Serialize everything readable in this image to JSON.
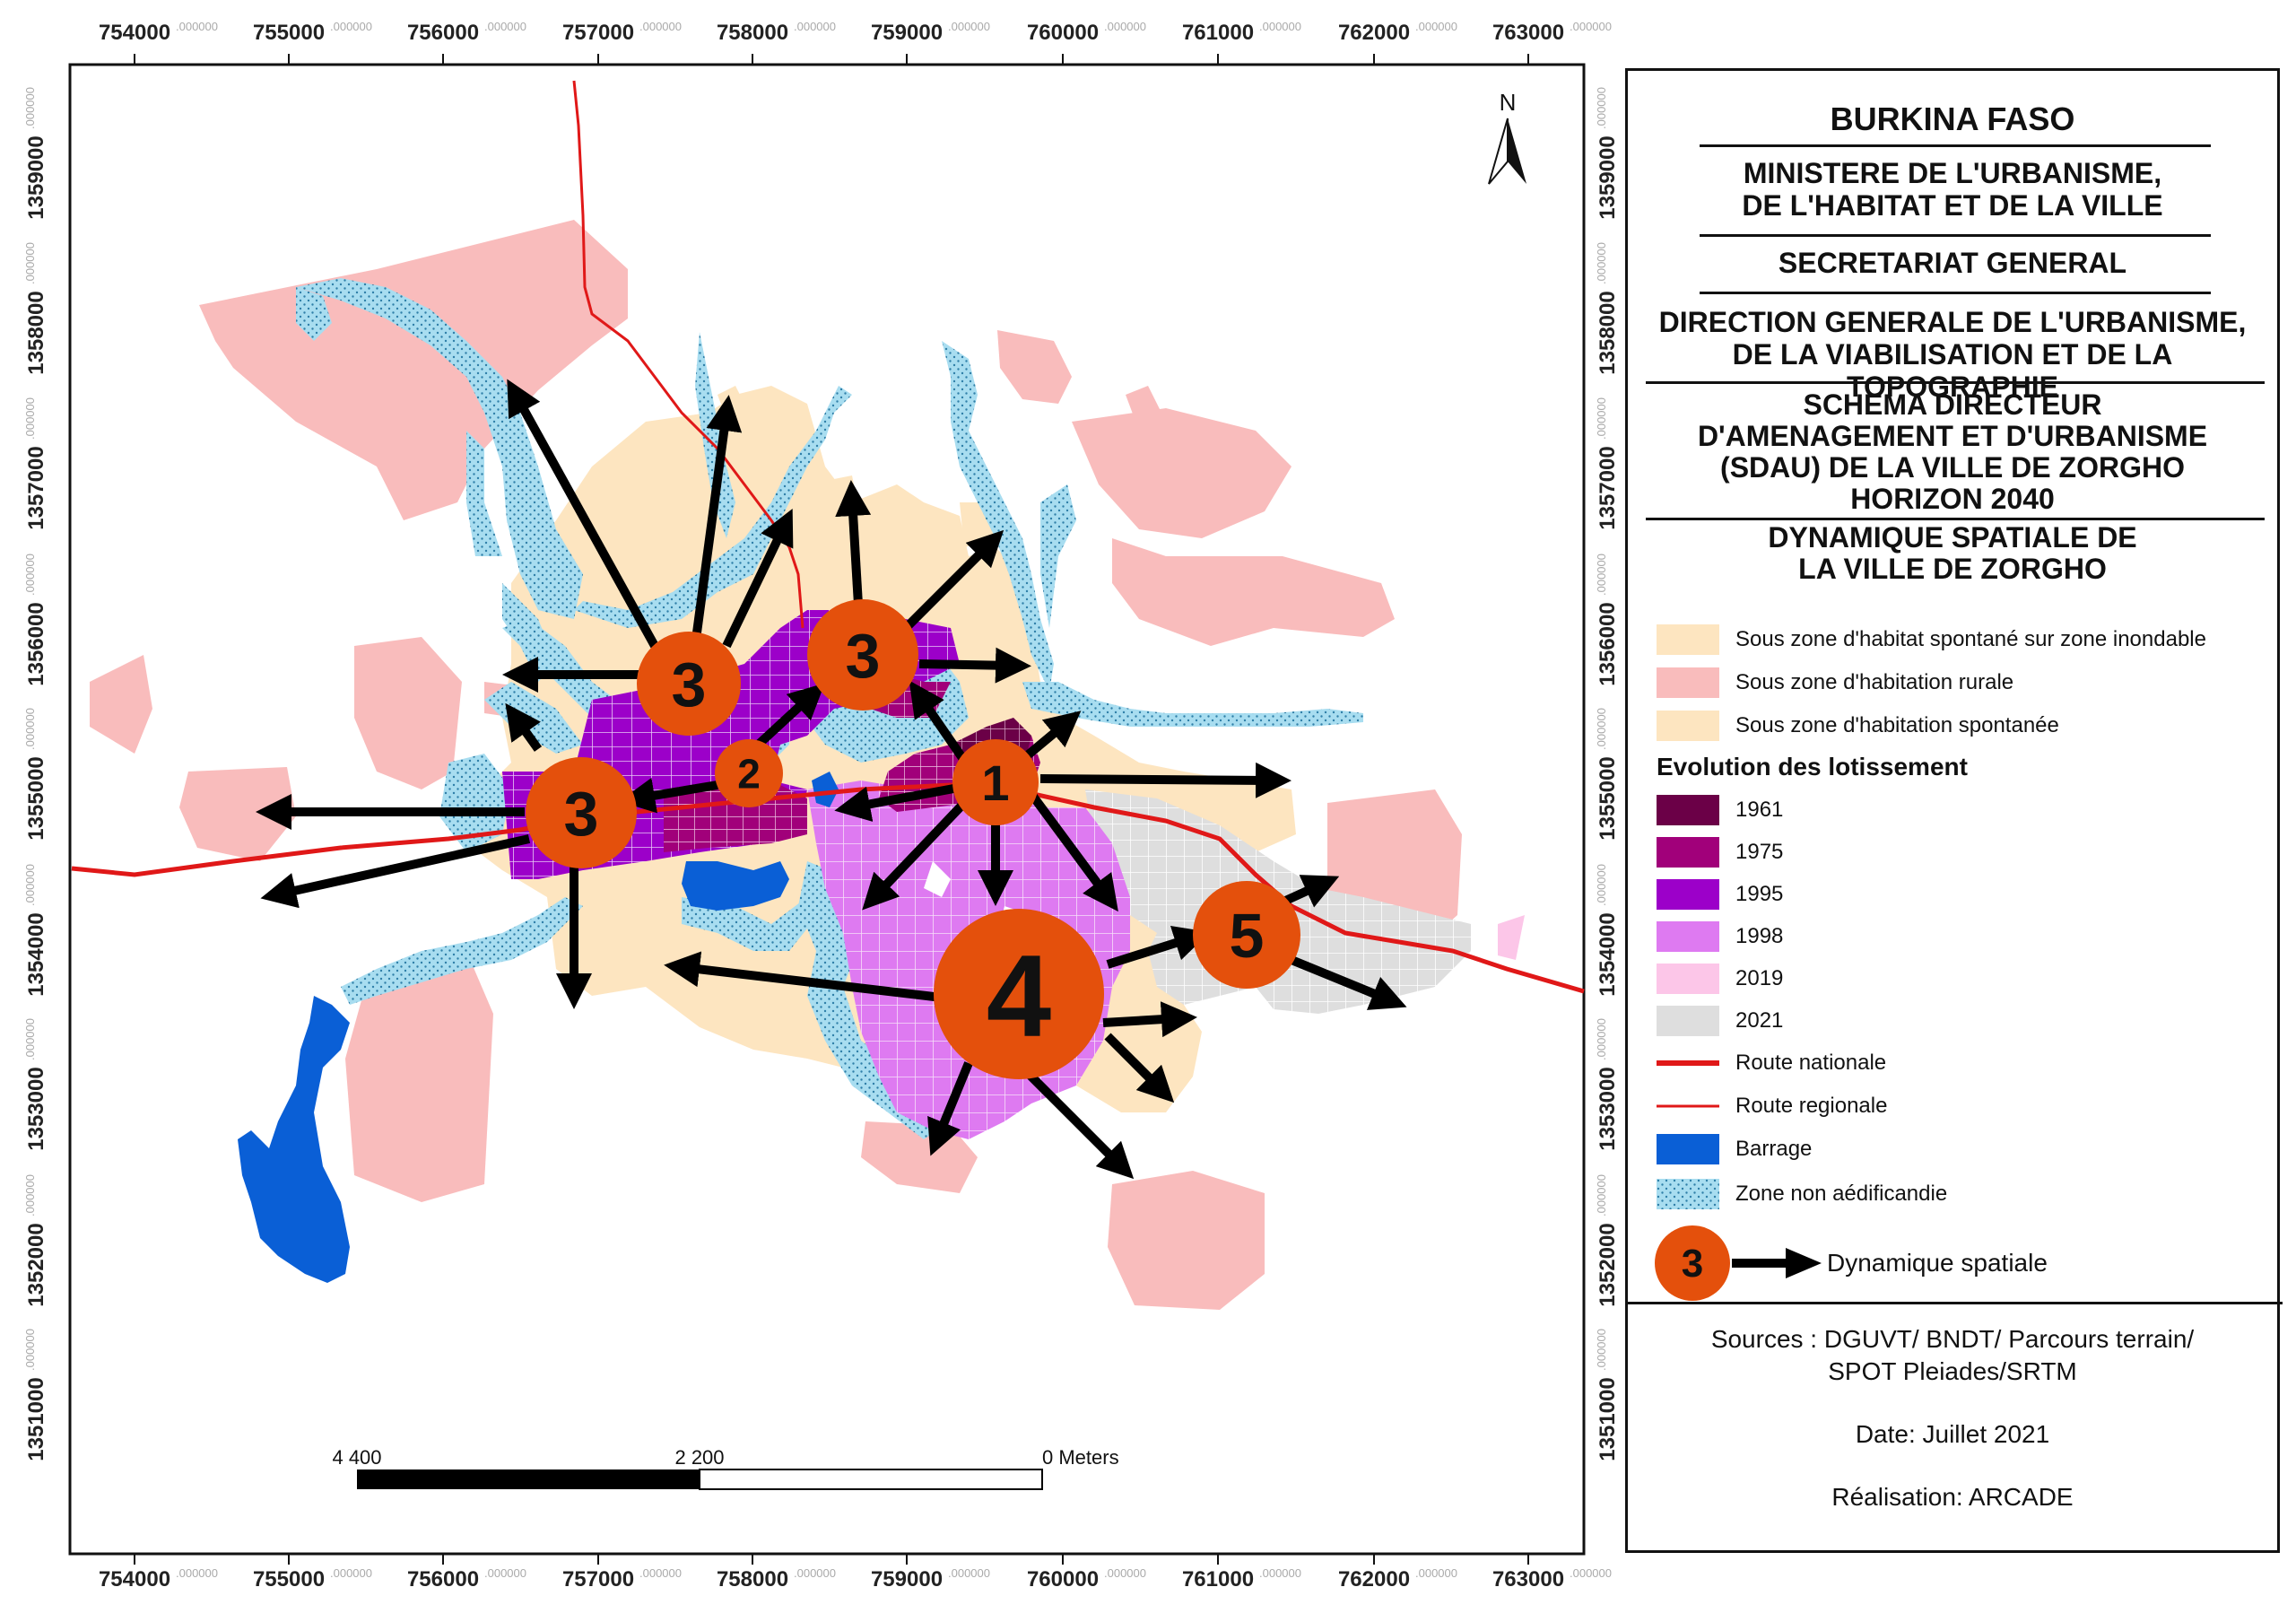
{
  "map": {
    "x_ticks": [
      "754000",
      "755000",
      "756000",
      "757000",
      "758000",
      "759000",
      "760000",
      "761000",
      "762000",
      "763000"
    ],
    "y_ticks": [
      "1359000",
      "1358000",
      "1357000",
      "1356000",
      "1355000",
      "1354000",
      "1353000",
      "1352000",
      "1351000"
    ],
    "tick_suffix": ".000000",
    "north_label": "N",
    "scale": {
      "labels": [
        "4 400",
        "2 200",
        "0 Meters"
      ]
    },
    "nodes": [
      {
        "label": "1"
      },
      {
        "label": "2"
      },
      {
        "label": "3"
      },
      {
        "label": "3"
      },
      {
        "label": "3"
      },
      {
        "label": "4"
      },
      {
        "label": "5"
      }
    ]
  },
  "header": {
    "country": "BURKINA FASO",
    "ministry": [
      "MINISTERE DE L'URBANISME,",
      "DE L'HABITAT ET DE LA VILLE"
    ],
    "secretariat": "SECRETARIAT GENERAL",
    "direction": [
      "DIRECTION GENERALE DE L'URBANISME,",
      "DE LA VIABILISATION ET DE LA TOPOGRAPHIE"
    ],
    "plan": [
      "SCHEMA DIRECTEUR",
      "D'AMENAGEMENT ET D'URBANISME",
      "(SDAU) DE LA VILLE DE ZORGHO",
      "HORIZON 2040"
    ],
    "map_title": [
      "DYNAMIQUE SPATIALE DE",
      "LA VILLE DE ZORGHO"
    ]
  },
  "legend": {
    "zones": [
      {
        "label": "Sous zone d'habitat spontané sur zone inondable",
        "color": "#fde5c0"
      },
      {
        "label": "Sous zone d'habitation rurale",
        "color": "#f9bcbc"
      },
      {
        "label": "Sous zone d'habitation spontanée",
        "color": "#fde5c0"
      }
    ],
    "evolution_title": "Evolution des lotissement",
    "years": [
      {
        "label": "1961",
        "color": "#6b0047"
      },
      {
        "label": "1975",
        "color": "#a1007a"
      },
      {
        "label": "1995",
        "color": "#9c00c9"
      },
      {
        "label": "1998",
        "color": "#de7af1"
      },
      {
        "label": "2019",
        "color": "#fcc6e8"
      },
      {
        "label": "2021",
        "color": "#dedede"
      }
    ],
    "lines": [
      {
        "label": "Route nationale",
        "color": "#e01818"
      },
      {
        "label": "Route regionale",
        "color": "#e01818"
      }
    ],
    "barrage": {
      "label": "Barrage",
      "color": "#0a5fd6"
    },
    "zone_na": {
      "label": "Zone non aédificandie",
      "color": "#a8ddf0"
    },
    "dynamic": {
      "symbol_label": "3",
      "label": "Dynamique spatiale",
      "color": "#e4500c"
    }
  },
  "sources": {
    "lines": [
      "Sources : DGUVT/ BNDT/ Parcours terrain/",
      "SPOT Pleiades/SRTM"
    ],
    "date": "Date: Juillet  2021",
    "author": "Réalisation: ARCADE"
  }
}
